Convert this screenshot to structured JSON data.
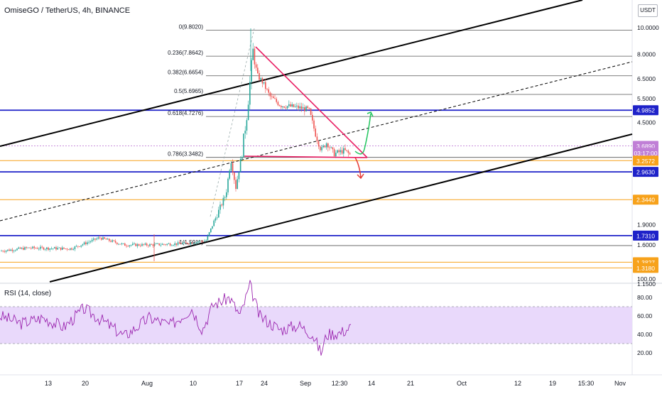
{
  "header": {
    "title": "OmiseGO / TetherUS, 4h, BINANCE",
    "currency_button": "USDT"
  },
  "rsi_panel": {
    "title": "RSI (14, close)"
  },
  "colors": {
    "up": "#26a69a",
    "down": "#ef5350",
    "blue_line": "#1e22c9",
    "orange_line": "#f7a21b",
    "pink_line": "#e91e63",
    "green_arrow": "#22c55e",
    "red_arrow": "#e53935",
    "rsi_line": "#9c27b0",
    "rsi_band": "#e9d9fb"
  },
  "chart_data": {
    "type": "candlestick",
    "y_scale": "log",
    "price_range": [
      1.15,
      12
    ],
    "x_tick_labels": [
      "13",
      "20",
      "Aug",
      "10",
      "17",
      "24",
      "Sep",
      "12:30",
      "14",
      "21",
      "Oct",
      "12",
      "19",
      "15:30",
      "Nov"
    ],
    "price_tick_labels": [
      "10.0000",
      "8.0000",
      "6.5000",
      "5.5000",
      "4.5000",
      "1.9000",
      "1.6000",
      "1.1500"
    ],
    "fib_levels": [
      {
        "label": "0(9.8020)",
        "value": 9.802
      },
      {
        "label": "0.236(7.8642)",
        "value": 7.8642
      },
      {
        "label": "0.382(6.6654)",
        "value": 6.6654
      },
      {
        "label": "0.5(5.6965)",
        "value": 5.6965
      },
      {
        "label": "0.618(4.7276)",
        "value": 4.7276
      },
      {
        "label": "0.786(3.3482)",
        "value": 3.3482
      },
      {
        "label": "1(1.5911)",
        "value": 1.5911
      }
    ],
    "price_badges": [
      {
        "label": "4.9852",
        "value": 4.9852,
        "color": "#1e22c9"
      },
      {
        "label": "3.6890",
        "value": 3.689,
        "color": "#c07fd6"
      },
      {
        "label": "03:17:00",
        "value": 3.48,
        "color": "#c07fd6"
      },
      {
        "label": "3.2572",
        "value": 3.2572,
        "color": "#f7a21b"
      },
      {
        "label": "2.9630",
        "value": 2.963,
        "color": "#1e22c9"
      },
      {
        "label": "2.3440",
        "value": 2.344,
        "color": "#f7a21b"
      },
      {
        "label": "1.7310",
        "value": 1.731,
        "color": "#1e22c9"
      },
      {
        "label": "1.3827",
        "value": 1.3827,
        "color": "#f7a21b"
      },
      {
        "label": "1.3180",
        "value": 1.318,
        "color": "#f7a21b"
      }
    ],
    "horizontal_levels": [
      {
        "value": 4.9852,
        "color": "#1e22c9",
        "kind": "support-resistance"
      },
      {
        "value": 2.963,
        "color": "#1e22c9",
        "kind": "support-resistance"
      },
      {
        "value": 1.731,
        "color": "#1e22c9",
        "kind": "support-resistance"
      },
      {
        "value": 3.2572,
        "color": "#f7a21b",
        "kind": "level"
      },
      {
        "value": 2.344,
        "color": "#f7a21b",
        "kind": "level"
      },
      {
        "value": 1.3827,
        "color": "#f7a21b",
        "kind": "level"
      },
      {
        "value": 1.318,
        "color": "#f7a21b",
        "kind": "level"
      }
    ],
    "last_price": 3.689,
    "rsi": {
      "range": [
        10,
        105
      ],
      "band": [
        30,
        70
      ],
      "tick_labels": [
        "100.00",
        "80.00",
        "60.00",
        "40.00",
        "20.00"
      ]
    }
  }
}
